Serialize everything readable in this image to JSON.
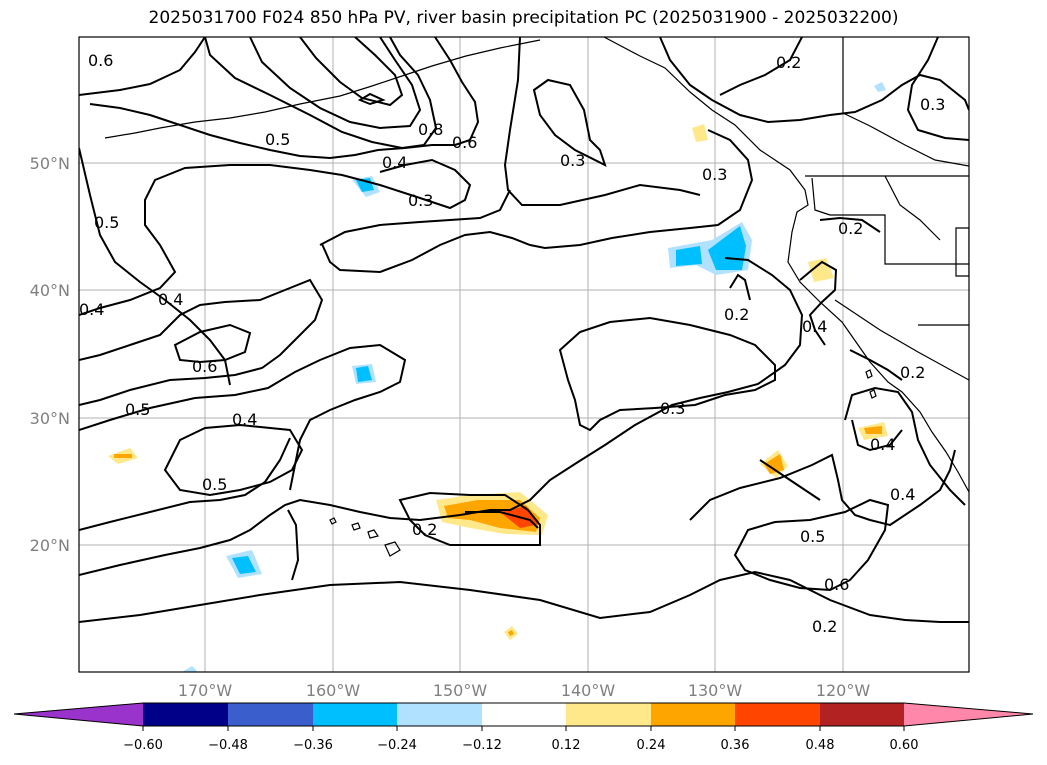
{
  "title": "2025031700 F024 850 hPa PV, river basin precipitation PC (2025031900 - 2025032200)",
  "axes": {
    "lat_ticks": [
      "50°N",
      "40°N",
      "30°N",
      "20°N"
    ],
    "lon_ticks": [
      "170°W",
      "160°W",
      "150°W",
      "140°W",
      "130°W",
      "120°W"
    ],
    "grid": true
  },
  "contour_labels": [
    "0.6",
    "0.8",
    "0.6",
    "0.5",
    "0.4",
    "0.3",
    "0.3",
    "0.5",
    "0.4",
    "0.4",
    "0.6",
    "0.5",
    "0.4",
    "0.5",
    "0.2",
    "0.3",
    "0.3",
    "0.2",
    "0.2",
    "0.2",
    "0.4",
    "0.2",
    "0.4",
    "0.4",
    "0.5",
    "0.6",
    "0.2",
    "0.3"
  ],
  "colorbar": {
    "ticks": [
      "−0.60",
      "−0.48",
      "−0.36",
      "−0.24",
      "−0.12",
      "0.12",
      "0.24",
      "0.36",
      "0.48",
      "0.60"
    ],
    "colors": [
      "#9933cc",
      "#000088",
      "#3a5fcd",
      "#00bfff",
      "#b0e2ff",
      "#ffffff",
      "#ffe88a",
      "#ffa500",
      "#ff4500",
      "#b22222",
      "#ff88aa"
    ],
    "extend": "both"
  }
}
